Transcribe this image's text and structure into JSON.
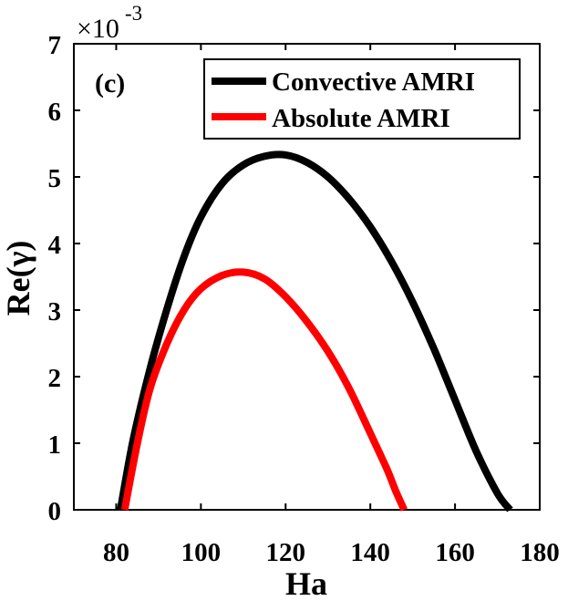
{
  "chart_data": {
    "type": "line",
    "panel_label": "(c)",
    "xlabel": "Ha",
    "ylabel": "Re(γ)",
    "xlim": [
      70,
      180
    ],
    "ylim": [
      0,
      7
    ],
    "y_scale_label": "×10",
    "y_scale_exponent": "-3",
    "x_ticks": [
      80,
      100,
      120,
      140,
      160,
      180
    ],
    "y_ticks": [
      0,
      1,
      2,
      3,
      4,
      5,
      6,
      7
    ],
    "legend_position": "top-right",
    "series": [
      {
        "name": "Convective AMRI",
        "color": "#000000",
        "x": [
          81,
          84,
          88,
          92,
          96,
          100,
          105,
          110,
          115,
          120,
          125,
          130,
          135,
          140,
          145,
          150,
          155,
          160,
          165,
          170,
          173
        ],
        "y": [
          0,
          1.05,
          2.12,
          3.02,
          3.8,
          4.4,
          4.9,
          5.18,
          5.31,
          5.33,
          5.22,
          5.0,
          4.67,
          4.25,
          3.73,
          3.12,
          2.42,
          1.65,
          0.88,
          0.25,
          0
        ]
      },
      {
        "name": "Absolute AMRI",
        "color": "#ff0000",
        "x": [
          82,
          85,
          88,
          92,
          96,
          100,
          105,
          110,
          115,
          120,
          125,
          130,
          135,
          140,
          144,
          146,
          148
        ],
        "y": [
          0,
          1.0,
          1.82,
          2.5,
          3.0,
          3.32,
          3.52,
          3.57,
          3.47,
          3.2,
          2.83,
          2.38,
          1.82,
          1.15,
          0.6,
          0.28,
          0
        ]
      }
    ]
  }
}
